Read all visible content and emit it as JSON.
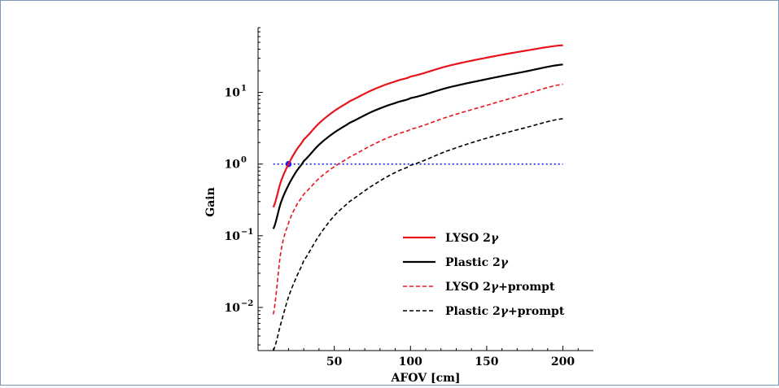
{
  "chart_data": {
    "type": "line",
    "title": "",
    "xlabel": "AFOV [cm]",
    "ylabel": "Gain",
    "xlim": [
      0,
      220
    ],
    "ylim": [
      0.0025,
      80
    ],
    "yscale": "log",
    "grid": false,
    "legend_position": "bottom-right",
    "x_ticks": [
      {
        "value": 50,
        "label": "50"
      },
      {
        "value": 100,
        "label": "100"
      },
      {
        "value": 150,
        "label": "150"
      },
      {
        "value": 200,
        "label": "200"
      }
    ],
    "y_ticks": [
      {
        "value": 0.01,
        "base": "10",
        "exp": "−2"
      },
      {
        "value": 0.1,
        "base": "10",
        "exp": "−1"
      },
      {
        "value": 1,
        "base": "10",
        "exp": "0"
      },
      {
        "value": 10,
        "base": "10",
        "exp": "1"
      }
    ],
    "x": [
      10,
      15,
      20,
      25,
      30,
      40,
      50,
      60,
      75,
      90,
      100,
      125,
      150,
      175,
      200
    ],
    "series": [
      {
        "name": "LYSO 2γ",
        "color": "#e8141c",
        "dash": "solid",
        "values": [
          0.25,
          0.57,
          1.0,
          1.55,
          2.2,
          3.7,
          5.5,
          7.5,
          10.8,
          14.2,
          16.6,
          23.5,
          30.5,
          38.0,
          45.5
        ]
      },
      {
        "name": "Plastic 2γ",
        "color": "#000000",
        "dash": "solid",
        "values": [
          0.125,
          0.29,
          0.51,
          0.78,
          1.1,
          1.86,
          2.75,
          3.75,
          5.4,
          7.1,
          8.3,
          11.7,
          15.3,
          19.5,
          24.5
        ]
      },
      {
        "name": "LYSO 2γ+prompt",
        "color": "#e8141c",
        "dash": "dashed",
        "values": [
          0.008,
          0.06,
          0.15,
          0.26,
          0.38,
          0.63,
          0.92,
          1.25,
          1.85,
          2.55,
          3.05,
          4.6,
          6.6,
          9.4,
          13.0
        ]
      },
      {
        "name": "Plastic 2γ+prompt",
        "color": "#000000",
        "dash": "dashed",
        "values": [
          0.0025,
          0.006,
          0.014,
          0.026,
          0.045,
          0.1,
          0.19,
          0.3,
          0.5,
          0.76,
          0.96,
          1.55,
          2.3,
          3.2,
          4.3
        ]
      }
    ],
    "reference_line": {
      "y": 1,
      "x_start": 10,
      "x_end": 200,
      "color": "#1a1aff",
      "style": "dotted"
    },
    "marker": {
      "x": 20,
      "y": 1,
      "color": "#1a1aff"
    },
    "legend": [
      {
        "text": "LYSO 2",
        "greek": "γ",
        "suffix": ""
      },
      {
        "text": "Plastic 2",
        "greek": "γ",
        "suffix": ""
      },
      {
        "text": "LYSO 2",
        "greek": "γ",
        "suffix": "+prompt"
      },
      {
        "text": "Plastic 2",
        "greek": "γ",
        "suffix": "+prompt"
      }
    ]
  }
}
